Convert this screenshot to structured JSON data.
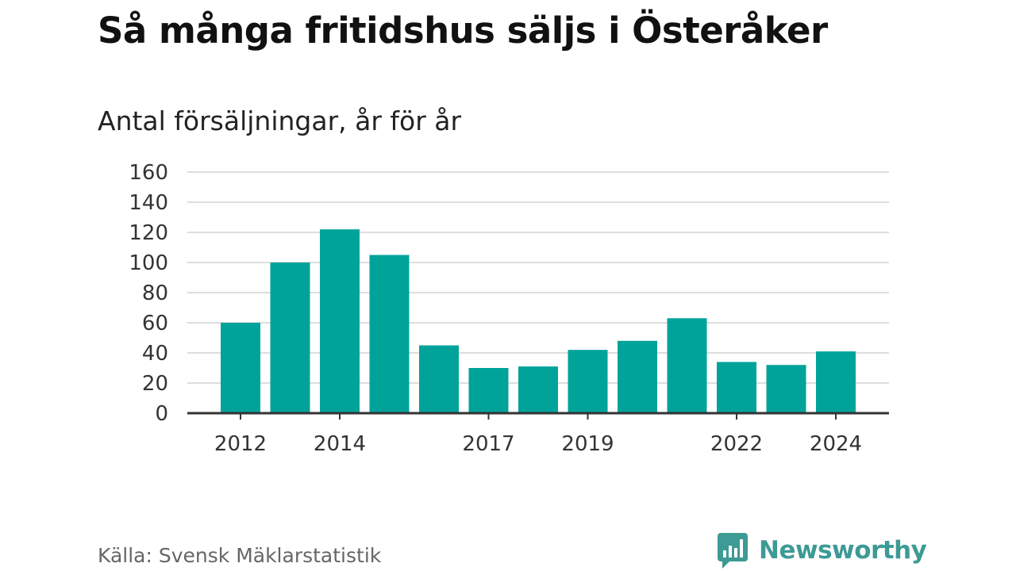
{
  "title": "Så många fritidshus säljs i Österåker",
  "subtitle": "Antal försäljningar, år för år",
  "source": "Källa: Svensk Mäklarstatistik",
  "brand": {
    "name": "Newsworthy",
    "icon": "newsworthy-logo-icon",
    "color": "#3d9a95"
  },
  "colors": {
    "bar": "#00a39a",
    "grid": "#dddddd",
    "axis": "#333333",
    "tick_text": "#333333"
  },
  "chart_data": {
    "type": "bar",
    "categories": [
      "2012",
      "2013",
      "2014",
      "2015",
      "2016",
      "2017",
      "2018",
      "2019",
      "2020",
      "2021",
      "2022",
      "2023",
      "2024"
    ],
    "values": [
      60,
      100,
      122,
      105,
      45,
      30,
      31,
      42,
      48,
      63,
      34,
      32,
      41
    ],
    "x_tick_labels": [
      "2012",
      "2014",
      "2017",
      "2019",
      "2022",
      "2024"
    ],
    "y_ticks": [
      0,
      20,
      40,
      60,
      80,
      100,
      120,
      140,
      160
    ],
    "ylim": [
      0,
      160
    ],
    "xlabel": "",
    "ylabel": "",
    "grid": true,
    "legend": "none"
  }
}
